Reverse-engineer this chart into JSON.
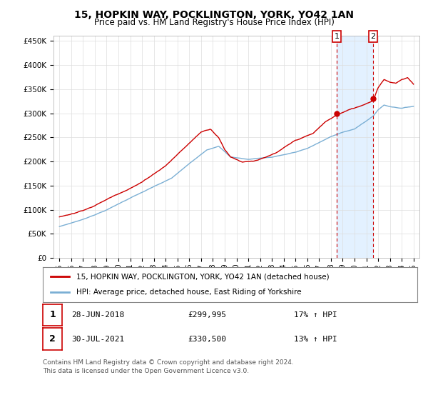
{
  "title": "15, HOPKIN WAY, POCKLINGTON, YORK, YO42 1AN",
  "subtitle": "Price paid vs. HM Land Registry's House Price Index (HPI)",
  "yticks": [
    0,
    50000,
    100000,
    150000,
    200000,
    250000,
    300000,
    350000,
    400000,
    450000
  ],
  "ytick_labels": [
    "£0",
    "£50K",
    "£100K",
    "£150K",
    "£200K",
    "£250K",
    "£300K",
    "£350K",
    "£400K",
    "£450K"
  ],
  "sale1_date": "28-JUN-2018",
  "sale1_price": 299995,
  "sale1_label": "17% ↑ HPI",
  "sale1_year": 2018.5,
  "sale2_date": "30-JUL-2021",
  "sale2_price": 330500,
  "sale2_label": "13% ↑ HPI",
  "sale2_year": 2021.58,
  "legend_label1": "15, HOPKIN WAY, POCKLINGTON, YORK, YO42 1AN (detached house)",
  "legend_label2": "HPI: Average price, detached house, East Riding of Yorkshire",
  "footer1": "Contains HM Land Registry data © Crown copyright and database right 2024.",
  "footer2": "This data is licensed under the Open Government Licence v3.0.",
  "line1_color": "#cc0000",
  "line2_color": "#7bafd4",
  "shade_color": "#ddeeff",
  "background_color": "#ffffff",
  "grid_color": "#dddddd",
  "box_edge_color": "#cc0000"
}
